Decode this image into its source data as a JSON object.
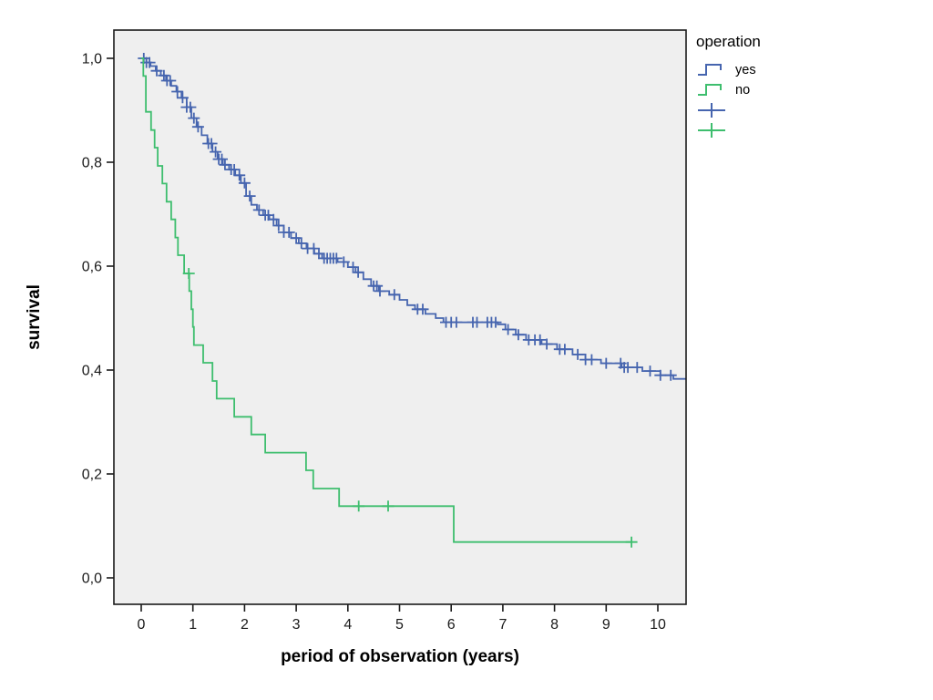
{
  "chart_data": {
    "type": "line",
    "subtype": "kaplan-meier-step",
    "title": "",
    "xlabel": "period of observation (years)",
    "ylabel": "survival",
    "xlim": [
      -0.55,
      10.55
    ],
    "ylim": [
      -0.05,
      1.05
    ],
    "grid": false,
    "plot_bg": "#EFEFEF",
    "frame_color": "#1a1a1a",
    "text_color": "#1a1a1a",
    "x_ticks": [
      {
        "label": "0",
        "value": 0
      },
      {
        "label": "1",
        "value": 1
      },
      {
        "label": "2",
        "value": 2
      },
      {
        "label": "3",
        "value": 3
      },
      {
        "label": "4",
        "value": 4
      },
      {
        "label": "5",
        "value": 5
      },
      {
        "label": "6",
        "value": 6
      },
      {
        "label": "7",
        "value": 7
      },
      {
        "label": "8",
        "value": 8
      },
      {
        "label": "9",
        "value": 9
      },
      {
        "label": "10",
        "value": 10
      }
    ],
    "y_ticks": [
      {
        "label": "0,0",
        "value": 0.0
      },
      {
        "label": "0,2",
        "value": 0.2
      },
      {
        "label": "0,4",
        "value": 0.4
      },
      {
        "label": "0,6",
        "value": 0.6
      },
      {
        "label": "0,8",
        "value": 0.8
      },
      {
        "label": "1,0",
        "value": 1.0
      }
    ],
    "legend": {
      "title": "operation",
      "position": "right",
      "items": [
        {
          "label": "yes",
          "symbol": "step-line",
          "series": 0
        },
        {
          "label": "no",
          "symbol": "step-line",
          "series": 1
        },
        {
          "label": "",
          "symbol": "censor-plus",
          "series": 0
        },
        {
          "label": "",
          "symbol": "censor-plus",
          "series": 1
        }
      ]
    },
    "series": [
      {
        "name": "yes",
        "color": "#4665AF",
        "end_x": 10.55,
        "steps": [
          [
            0.0,
            1.0
          ],
          [
            0.1,
            0.992
          ],
          [
            0.18,
            0.985
          ],
          [
            0.28,
            0.976
          ],
          [
            0.38,
            0.967
          ],
          [
            0.48,
            0.957
          ],
          [
            0.58,
            0.947
          ],
          [
            0.68,
            0.936
          ],
          [
            0.78,
            0.924
          ],
          [
            0.88,
            0.906
          ],
          [
            0.97,
            0.885
          ],
          [
            1.07,
            0.868
          ],
          [
            1.17,
            0.852
          ],
          [
            1.28,
            0.836
          ],
          [
            1.38,
            0.82
          ],
          [
            1.48,
            0.806
          ],
          [
            1.58,
            0.795
          ],
          [
            1.7,
            0.786
          ],
          [
            1.82,
            0.775
          ],
          [
            1.93,
            0.76
          ],
          [
            2.03,
            0.735
          ],
          [
            2.13,
            0.718
          ],
          [
            2.24,
            0.708
          ],
          [
            2.36,
            0.698
          ],
          [
            2.48,
            0.69
          ],
          [
            2.62,
            0.678
          ],
          [
            2.76,
            0.665
          ],
          [
            2.9,
            0.654
          ],
          [
            3.05,
            0.644
          ],
          [
            3.2,
            0.634
          ],
          [
            3.35,
            0.624
          ],
          [
            3.5,
            0.615
          ],
          [
            3.8,
            0.608
          ],
          [
            4.0,
            0.598
          ],
          [
            4.15,
            0.588
          ],
          [
            4.3,
            0.575
          ],
          [
            4.45,
            0.562
          ],
          [
            4.6,
            0.552
          ],
          [
            4.8,
            0.545
          ],
          [
            5.0,
            0.535
          ],
          [
            5.15,
            0.525
          ],
          [
            5.3,
            0.517
          ],
          [
            5.5,
            0.508
          ],
          [
            5.7,
            0.5
          ],
          [
            5.85,
            0.492
          ],
          [
            6.9,
            0.488
          ],
          [
            7.05,
            0.478
          ],
          [
            7.25,
            0.468
          ],
          [
            7.45,
            0.458
          ],
          [
            7.75,
            0.45
          ],
          [
            8.05,
            0.44
          ],
          [
            8.35,
            0.43
          ],
          [
            8.6,
            0.42
          ],
          [
            8.9,
            0.413
          ],
          [
            9.3,
            0.405
          ],
          [
            9.7,
            0.398
          ],
          [
            10.05,
            0.39
          ],
          [
            10.3,
            0.383
          ]
        ],
        "censored_x": [
          0.05,
          0.1,
          0.16,
          0.3,
          0.44,
          0.5,
          0.56,
          0.7,
          0.8,
          0.88,
          0.95,
          1.02,
          1.1,
          1.3,
          1.36,
          1.44,
          1.5,
          1.56,
          1.62,
          1.74,
          1.8,
          1.9,
          2.0,
          2.1,
          2.28,
          2.4,
          2.46,
          2.56,
          2.66,
          2.76,
          2.86,
          3.0,
          3.1,
          3.22,
          3.34,
          3.44,
          3.54,
          3.6,
          3.66,
          3.72,
          3.78,
          3.92,
          4.1,
          4.2,
          4.5,
          4.56,
          4.62,
          4.9,
          5.35,
          5.45,
          5.9,
          6.0,
          6.1,
          6.42,
          6.5,
          6.7,
          6.78,
          6.86,
          7.1,
          7.3,
          7.5,
          7.62,
          7.72,
          7.85,
          8.1,
          8.2,
          8.45,
          8.6,
          8.72,
          9.0,
          9.28,
          9.35,
          9.42,
          9.6,
          9.85,
          10.05,
          10.25
        ]
      },
      {
        "name": "no",
        "color": "#3EBE6E",
        "end_x": 9.49,
        "steps": [
          [
            0.0,
            1.0
          ],
          [
            0.04,
            0.966
          ],
          [
            0.09,
            0.897
          ],
          [
            0.19,
            0.862
          ],
          [
            0.26,
            0.828
          ],
          [
            0.32,
            0.793
          ],
          [
            0.41,
            0.759
          ],
          [
            0.49,
            0.724
          ],
          [
            0.58,
            0.69
          ],
          [
            0.66,
            0.655
          ],
          [
            0.71,
            0.621
          ],
          [
            0.83,
            0.586
          ],
          [
            0.93,
            0.552
          ],
          [
            0.97,
            0.517
          ],
          [
            1.0,
            0.483
          ],
          [
            1.02,
            0.448
          ],
          [
            1.2,
            0.414
          ],
          [
            1.38,
            0.379
          ],
          [
            1.46,
            0.345
          ],
          [
            1.8,
            0.31
          ],
          [
            2.13,
            0.276
          ],
          [
            2.4,
            0.241
          ],
          [
            3.19,
            0.207
          ],
          [
            3.33,
            0.172
          ],
          [
            3.83,
            0.138
          ],
          [
            6.05,
            0.069
          ]
        ],
        "censored_x": [
          0.92,
          4.21,
          4.78,
          9.49
        ]
      }
    ]
  }
}
